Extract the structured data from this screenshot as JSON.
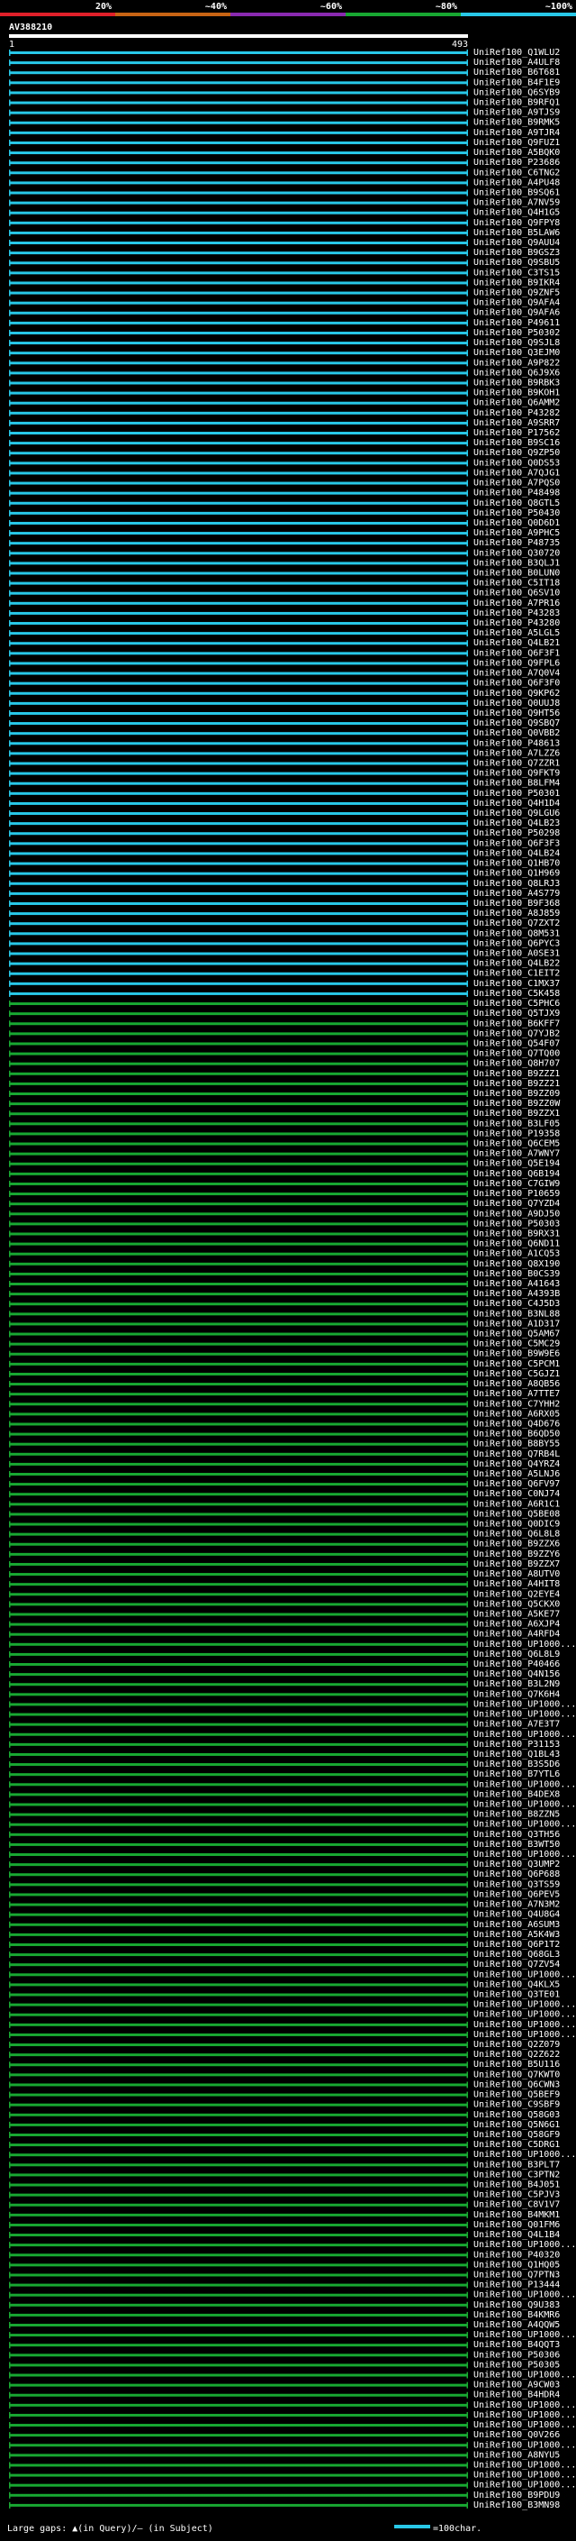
{
  "chart_data": {
    "type": "alignment-overview",
    "title": "AV388210",
    "query_start": "1",
    "query_end": "493",
    "identity_scale": {
      "labels": [
        "20%",
        "~40%",
        "~60%",
        "~80%",
        "~100%"
      ],
      "colors": [
        "#e0202a",
        "#c86414",
        "#8a2ab0",
        "#18a832",
        "#28c8e8"
      ]
    },
    "legend": {
      "gaps_text": "Large gaps: ▲(in Query)/– (in Subject)",
      "scale_text": "=100char."
    },
    "row_label_template": "UniRef100_{id}",
    "hits": [
      {
        "id": "Q1WLU2",
        "identity": 100
      },
      {
        "id": "A4ULF8",
        "identity": 100
      },
      {
        "id": "B6T681",
        "identity": 100
      },
      {
        "id": "B4F1E9",
        "identity": 100
      },
      {
        "id": "Q6SYB9",
        "identity": 100
      },
      {
        "id": "B9RFQ1",
        "identity": 100
      },
      {
        "id": "A9TJS9",
        "identity": 100
      },
      {
        "id": "B9RMK5",
        "identity": 100
      },
      {
        "id": "A9TJR4",
        "identity": 100
      },
      {
        "id": "Q9FUZ1",
        "identity": 100
      },
      {
        "id": "A5BQK0",
        "identity": 100
      },
      {
        "id": "P23686",
        "identity": 100
      },
      {
        "id": "C6TNG2",
        "identity": 100
      },
      {
        "id": "A4PU48",
        "identity": 100
      },
      {
        "id": "B9SQ61",
        "identity": 100
      },
      {
        "id": "A7NV59",
        "identity": 100
      },
      {
        "id": "Q4H1G5",
        "identity": 100
      },
      {
        "id": "Q9FPY8",
        "identity": 100
      },
      {
        "id": "B5LAW6",
        "identity": 100
      },
      {
        "id": "Q9AUU4",
        "identity": 100
      },
      {
        "id": "B9GSZ3",
        "identity": 100
      },
      {
        "id": "Q9SBU5",
        "identity": 100
      },
      {
        "id": "C3TS15",
        "identity": 100
      },
      {
        "id": "B9IKR4",
        "identity": 100
      },
      {
        "id": "Q9ZNF5",
        "identity": 100
      },
      {
        "id": "Q9AFA4",
        "identity": 100
      },
      {
        "id": "Q9AFA6",
        "identity": 100
      },
      {
        "id": "P49611",
        "identity": 100
      },
      {
        "id": "P50302",
        "identity": 100
      },
      {
        "id": "Q9SJL8",
        "identity": 100
      },
      {
        "id": "Q3EJM0",
        "identity": 100
      },
      {
        "id": "A9P822",
        "identity": 100
      },
      {
        "id": "Q6J9X6",
        "identity": 100
      },
      {
        "id": "B9RBK3",
        "identity": 100
      },
      {
        "id": "B9KOH1",
        "identity": 100
      },
      {
        "id": "Q6AMM2",
        "identity": 100
      },
      {
        "id": "P43282",
        "identity": 100
      },
      {
        "id": "A9SRR7",
        "identity": 100
      },
      {
        "id": "P17562",
        "identity": 100
      },
      {
        "id": "B9SC16",
        "identity": 100
      },
      {
        "id": "Q9ZP50",
        "identity": 100
      },
      {
        "id": "Q0DS53",
        "identity": 100
      },
      {
        "id": "A7QJG1",
        "identity": 100
      },
      {
        "id": "A7PQS0",
        "identity": 100
      },
      {
        "id": "P48498",
        "identity": 100
      },
      {
        "id": "Q8GTL5",
        "identity": 100
      },
      {
        "id": "P50430",
        "identity": 100
      },
      {
        "id": "Q0D6D1",
        "identity": 100
      },
      {
        "id": "A9PHC5",
        "identity": 100
      },
      {
        "id": "P48735",
        "identity": 100
      },
      {
        "id": "Q30720",
        "identity": 100
      },
      {
        "id": "B3QLJ1",
        "identity": 100
      },
      {
        "id": "B0LUN0",
        "identity": 100
      },
      {
        "id": "C5IT18",
        "identity": 100
      },
      {
        "id": "Q6SV10",
        "identity": 100
      },
      {
        "id": "A7PR16",
        "identity": 100
      },
      {
        "id": "P43283",
        "identity": 100
      },
      {
        "id": "P43280",
        "identity": 100
      },
      {
        "id": "A5LGL5",
        "identity": 100
      },
      {
        "id": "Q4LB21",
        "identity": 100
      },
      {
        "id": "Q6F3F1",
        "identity": 100
      },
      {
        "id": "Q9FPL6",
        "identity": 100
      },
      {
        "id": "A7Q0V4",
        "identity": 100
      },
      {
        "id": "Q6F3F0",
        "identity": 100
      },
      {
        "id": "Q9KP62",
        "identity": 100
      },
      {
        "id": "Q0UUJ8",
        "identity": 100
      },
      {
        "id": "Q9HT56",
        "identity": 100
      },
      {
        "id": "Q9SBQ7",
        "identity": 100
      },
      {
        "id": "Q0VBB2",
        "identity": 100
      },
      {
        "id": "P48613",
        "identity": 100
      },
      {
        "id": "A7LZZ6",
        "identity": 100
      },
      {
        "id": "Q7ZZR1",
        "identity": 100
      },
      {
        "id": "Q9FKT9",
        "identity": 100
      },
      {
        "id": "B8LFM4",
        "identity": 100
      },
      {
        "id": "P50301",
        "identity": 100
      },
      {
        "id": "Q4H1D4",
        "identity": 100
      },
      {
        "id": "Q9LGU6",
        "identity": 100
      },
      {
        "id": "Q4LB23",
        "identity": 100
      },
      {
        "id": "P50298",
        "identity": 100
      },
      {
        "id": "Q6F3F3",
        "identity": 100
      },
      {
        "id": "Q4LB24",
        "identity": 100
      },
      {
        "id": "Q1HB70",
        "identity": 100
      },
      {
        "id": "Q1H969",
        "identity": 100
      },
      {
        "id": "Q8LRJ3",
        "identity": 100
      },
      {
        "id": "A4S779",
        "identity": 100
      },
      {
        "id": "B9F368",
        "identity": 100
      },
      {
        "id": "A8J859",
        "identity": 100
      },
      {
        "id": "Q7ZXT2",
        "identity": 100
      },
      {
        "id": "Q8M531",
        "identity": 100
      },
      {
        "id": "Q6PYC3",
        "identity": 100
      },
      {
        "id": "A0SE31",
        "identity": 100
      },
      {
        "id": "Q4LB22",
        "identity": 100
      },
      {
        "id": "C1EIT2",
        "identity": 100
      },
      {
        "id": "C1MX37",
        "identity": 100
      },
      {
        "id": "C5K458",
        "identity": 100
      },
      {
        "id": "C5PHC6",
        "identity": 80
      },
      {
        "id": "Q5TJX9",
        "identity": 80
      },
      {
        "id": "B6KFF7",
        "identity": 80
      },
      {
        "id": "Q7YJB2",
        "identity": 80
      },
      {
        "id": "Q54F07",
        "identity": 80
      },
      {
        "id": "Q7TQ00",
        "identity": 80
      },
      {
        "id": "Q8H707",
        "identity": 80
      },
      {
        "id": "B9ZZZ1",
        "identity": 80
      },
      {
        "id": "B9ZZ21",
        "identity": 80
      },
      {
        "id": "B9ZZ09",
        "identity": 80
      },
      {
        "id": "B9ZZ0W",
        "identity": 80
      },
      {
        "id": "B9ZZX1",
        "identity": 80
      },
      {
        "id": "B3LF05",
        "identity": 80
      },
      {
        "id": "P19358",
        "identity": 80
      },
      {
        "id": "Q6CEM5",
        "identity": 80
      },
      {
        "id": "A7WNY7",
        "identity": 80
      },
      {
        "id": "Q5E194",
        "identity": 80
      },
      {
        "id": "Q6B194",
        "identity": 80
      },
      {
        "id": "C7GIW9",
        "identity": 80
      },
      {
        "id": "P10659",
        "identity": 80
      },
      {
        "id": "Q7YZD4",
        "identity": 80
      },
      {
        "id": "A9DJ50",
        "identity": 80
      },
      {
        "id": "P50303",
        "identity": 80
      },
      {
        "id": "B9RX31",
        "identity": 80
      },
      {
        "id": "Q6ND11",
        "identity": 80
      },
      {
        "id": "A1CQ53",
        "identity": 80
      },
      {
        "id": "Q8X190",
        "identity": 80
      },
      {
        "id": "B0CS39",
        "identity": 80
      },
      {
        "id": "A41643",
        "identity": 80
      },
      {
        "id": "A4393B",
        "identity": 80
      },
      {
        "id": "C4J5D3",
        "identity": 80
      },
      {
        "id": "B3NL88",
        "identity": 80
      },
      {
        "id": "A1D317",
        "identity": 80
      },
      {
        "id": "Q5AM67",
        "identity": 80
      },
      {
        "id": "C5MC29",
        "identity": 80
      },
      {
        "id": "B9W9E6",
        "identity": 80
      },
      {
        "id": "C5PCM1",
        "identity": 80
      },
      {
        "id": "C5GJZ1",
        "identity": 80
      },
      {
        "id": "A8QB56",
        "identity": 80
      },
      {
        "id": "A7TTE7",
        "identity": 80
      },
      {
        "id": "C7YHH2",
        "identity": 80
      },
      {
        "id": "A6RX05",
        "identity": 80
      },
      {
        "id": "Q4D676",
        "identity": 80
      },
      {
        "id": "B6QD50",
        "identity": 80
      },
      {
        "id": "B8BY55",
        "identity": 80
      },
      {
        "id": "Q7RB4L",
        "identity": 80
      },
      {
        "id": "Q4YRZ4",
        "identity": 80
      },
      {
        "id": "A5LNJ6",
        "identity": 80
      },
      {
        "id": "Q6FV97",
        "identity": 80
      },
      {
        "id": "C0NJ74",
        "identity": 80
      },
      {
        "id": "A6R1C1",
        "identity": 80
      },
      {
        "id": "Q5BE08",
        "identity": 80
      },
      {
        "id": "Q0DIC9",
        "identity": 80
      },
      {
        "id": "Q6L8L8",
        "identity": 80
      },
      {
        "id": "B9ZZX6",
        "identity": 80
      },
      {
        "id": "B9ZZY6",
        "identity": 80
      },
      {
        "id": "B9ZZX7",
        "identity": 80
      },
      {
        "id": "A8UTV0",
        "identity": 80
      },
      {
        "id": "A4HIT8",
        "identity": 80
      },
      {
        "id": "Q2EYE4",
        "identity": 80
      },
      {
        "id": "Q5CKX0",
        "identity": 80
      },
      {
        "id": "A5KE77",
        "identity": 80
      },
      {
        "id": "A6XJP4",
        "identity": 80
      },
      {
        "id": "A4RFD4",
        "identity": 80
      },
      {
        "id": "UP1000...",
        "identity": 80
      },
      {
        "id": "Q6L8L9",
        "identity": 80
      },
      {
        "id": "P40466",
        "identity": 80
      },
      {
        "id": "Q4N156",
        "identity": 80
      },
      {
        "id": "B3L2N9",
        "identity": 80
      },
      {
        "id": "Q7K6H4",
        "identity": 80
      },
      {
        "id": "UP1000...",
        "identity": 80
      },
      {
        "id": "UP1000...",
        "identity": 80
      },
      {
        "id": "A7E3T7",
        "identity": 80
      },
      {
        "id": "UP1000...",
        "identity": 80
      },
      {
        "id": "P31153",
        "identity": 80
      },
      {
        "id": "Q1BL43",
        "identity": 80
      },
      {
        "id": "B3S5D6",
        "identity": 80
      },
      {
        "id": "B7YTL6",
        "identity": 80
      },
      {
        "id": "UP1000...",
        "identity": 80
      },
      {
        "id": "B4DEX8",
        "identity": 80
      },
      {
        "id": "UP1000...",
        "identity": 80
      },
      {
        "id": "B8ZZN5",
        "identity": 80
      },
      {
        "id": "UP1000...",
        "identity": 80
      },
      {
        "id": "Q3TH56",
        "identity": 80
      },
      {
        "id": "B3WT50",
        "identity": 80
      },
      {
        "id": "UP1000...",
        "identity": 80
      },
      {
        "id": "Q3UMP2",
        "identity": 80
      },
      {
        "id": "Q6P688",
        "identity": 80
      },
      {
        "id": "Q3TS59",
        "identity": 80
      },
      {
        "id": "Q6PEV5",
        "identity": 80
      },
      {
        "id": "A7N3M2",
        "identity": 80
      },
      {
        "id": "Q4U8G4",
        "identity": 80
      },
      {
        "id": "A6SUM3",
        "identity": 80
      },
      {
        "id": "A5K4W3",
        "identity": 80
      },
      {
        "id": "Q6P1T2",
        "identity": 80
      },
      {
        "id": "Q68GL3",
        "identity": 80
      },
      {
        "id": "Q7ZV54",
        "identity": 80
      },
      {
        "id": "UP1000...",
        "identity": 80
      },
      {
        "id": "Q4KLX5",
        "identity": 80
      },
      {
        "id": "Q3TE01",
        "identity": 80
      },
      {
        "id": "UP1000...",
        "identity": 80
      },
      {
        "id": "UP1000...",
        "identity": 80
      },
      {
        "id": "UP1000...",
        "identity": 80
      },
      {
        "id": "UP1000...",
        "identity": 80
      },
      {
        "id": "Q2Z079",
        "identity": 80
      },
      {
        "id": "Q2Z622",
        "identity": 80
      },
      {
        "id": "B5U116",
        "identity": 80
      },
      {
        "id": "Q7KWT0",
        "identity": 80
      },
      {
        "id": "Q6CWN3",
        "identity": 80
      },
      {
        "id": "Q5BEF9",
        "identity": 80
      },
      {
        "id": "C9SBF9",
        "identity": 80
      },
      {
        "id": "Q58G03",
        "identity": 80
      },
      {
        "id": "Q5N6G1",
        "identity": 80
      },
      {
        "id": "Q58GF9",
        "identity": 80
      },
      {
        "id": "C5DRG1",
        "identity": 80
      },
      {
        "id": "UP1000...",
        "identity": 80
      },
      {
        "id": "B3PLT7",
        "identity": 80
      },
      {
        "id": "C3PTN2",
        "identity": 80
      },
      {
        "id": "B4J051",
        "identity": 80
      },
      {
        "id": "C5PJV3",
        "identity": 80
      },
      {
        "id": "C8V1V7",
        "identity": 80
      },
      {
        "id": "B4MKM1",
        "identity": 80
      },
      {
        "id": "Q01FM6",
        "identity": 80
      },
      {
        "id": "Q4L1B4",
        "identity": 80
      },
      {
        "id": "UP1000...",
        "identity": 80
      },
      {
        "id": "P40320",
        "identity": 80
      },
      {
        "id": "Q1HQ05",
        "identity": 80
      },
      {
        "id": "Q7PTN3",
        "identity": 80
      },
      {
        "id": "P13444",
        "identity": 80
      },
      {
        "id": "UP1000...",
        "identity": 80
      },
      {
        "id": "Q9U383",
        "identity": 80
      },
      {
        "id": "B4KMR6",
        "identity": 80
      },
      {
        "id": "A4QQW5",
        "identity": 80
      },
      {
        "id": "UP1000...",
        "identity": 80
      },
      {
        "id": "B4QQT3",
        "identity": 80
      },
      {
        "id": "P50306",
        "identity": 80
      },
      {
        "id": "P50305",
        "identity": 80
      },
      {
        "id": "UP1000...",
        "identity": 80
      },
      {
        "id": "A9CW03",
        "identity": 80
      },
      {
        "id": "B4HDR4",
        "identity": 80
      },
      {
        "id": "UP1000...",
        "identity": 80
      },
      {
        "id": "UP1000...",
        "identity": 80
      },
      {
        "id": "UP1000...",
        "identity": 80
      },
      {
        "id": "Q0V266",
        "identity": 80
      },
      {
        "id": "UP1000...",
        "identity": 80
      },
      {
        "id": "A8NYU5",
        "identity": 80
      },
      {
        "id": "UP1000...",
        "identity": 80
      },
      {
        "id": "UP1000...",
        "identity": 80
      },
      {
        "id": "UP1000...",
        "identity": 80
      },
      {
        "id": "B9PDU9",
        "identity": 80
      },
      {
        "id": "B3MN98",
        "identity": 80
      }
    ]
  }
}
